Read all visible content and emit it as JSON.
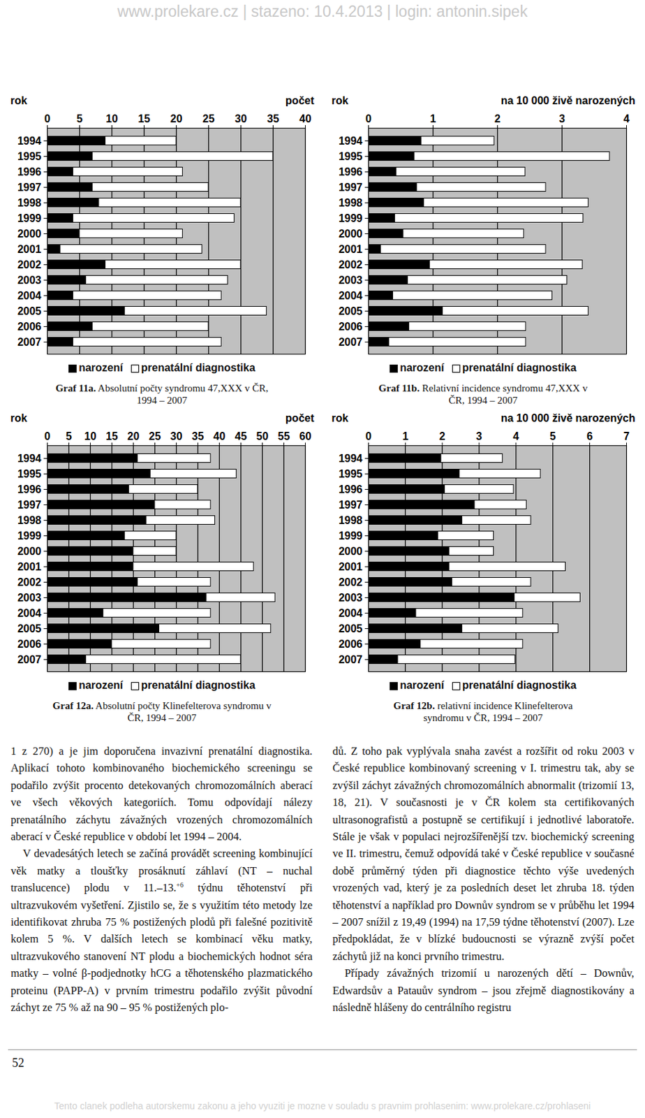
{
  "header": "www.prolekare.cz | stazeno: 10.4.2013 | login: antonin.sipek",
  "chart_data": [
    {
      "type": "bar",
      "orientation": "horizontal",
      "stacked": true,
      "grid": true,
      "legend": "bottom",
      "figure_label": "Graf 11a.",
      "title": "Absolutní počty syndromu 47,XXX v ČR, 1994 – 2007",
      "xlabel": "počet",
      "ylabel": "rok",
      "categories": [
        "1994",
        "1995",
        "1996",
        "1997",
        "1998",
        "1999",
        "2000",
        "2001",
        "2002",
        "2003",
        "2004",
        "2005",
        "2006",
        "2007"
      ],
      "series": [
        {
          "name": "narození",
          "color": "#000000",
          "values": [
            9,
            7,
            4,
            7,
            8,
            4,
            5,
            2,
            9,
            6,
            4,
            12,
            7,
            4
          ]
        },
        {
          "name": "prenatální diagnostika",
          "color": "#ffffff",
          "values": [
            11,
            28,
            17,
            18,
            22,
            25,
            16,
            22,
            21,
            22,
            23,
            22,
            18,
            23
          ]
        }
      ],
      "xlim": [
        0,
        40
      ],
      "xticks": [
        0,
        5,
        10,
        15,
        20,
        25,
        30,
        35,
        40
      ]
    },
    {
      "type": "bar",
      "orientation": "horizontal",
      "stacked": true,
      "grid": true,
      "legend": "bottom",
      "figure_label": "Graf 11b.",
      "title": "Relativní incidence syndromu 47,XXX v ČR, 1994 – 2007",
      "xlabel": "na 10 000 živě narozených",
      "ylabel": "rok",
      "categories": [
        "1994",
        "1995",
        "1996",
        "1997",
        "1998",
        "1999",
        "2000",
        "2001",
        "2002",
        "2003",
        "2004",
        "2005",
        "2006",
        "2007"
      ],
      "series": [
        {
          "name": "narození",
          "color": "#000000",
          "values": [
            0.82,
            0.71,
            0.43,
            0.75,
            0.86,
            0.41,
            0.54,
            0.19,
            0.95,
            0.61,
            0.38,
            1.15,
            0.63,
            0.32
          ]
        },
        {
          "name": "prenatální diagnostika",
          "color": "#ffffff",
          "values": [
            1.13,
            3.03,
            2,
            2,
            2.55,
            2.92,
            1.87,
            2.56,
            2.37,
            2.47,
            2.47,
            2.26,
            1.81,
            2.12
          ]
        }
      ],
      "xlim": [
        0,
        4
      ],
      "xticks": [
        0,
        1,
        2,
        3,
        4
      ]
    },
    {
      "type": "bar",
      "orientation": "horizontal",
      "stacked": true,
      "grid": true,
      "legend": "bottom",
      "figure_label": "Graf 12a.",
      "title": "Absolutní počty Klinefelterova syndromu v ČR, 1994 – 2007",
      "xlabel": "počet",
      "ylabel": "rok",
      "categories": [
        "1994",
        "1995",
        "1996",
        "1997",
        "1998",
        "1999",
        "2000",
        "2001",
        "2002",
        "2003",
        "2004",
        "2005",
        "2006",
        "2007"
      ],
      "series": [
        {
          "name": "narození",
          "color": "#000000",
          "values": [
            21,
            24,
            19,
            25,
            23,
            18,
            20,
            20,
            21,
            37,
            13,
            26,
            15,
            9
          ]
        },
        {
          "name": "prenatální diagnostika",
          "color": "#ffffff",
          "values": [
            17,
            20,
            16,
            13,
            16,
            12,
            10,
            28,
            17,
            16,
            25,
            26,
            23,
            36
          ]
        }
      ],
      "xlim": [
        0,
        60
      ],
      "xticks": [
        0,
        5,
        10,
        15,
        20,
        25,
        30,
        35,
        40,
        45,
        50,
        55,
        60
      ]
    },
    {
      "type": "bar",
      "orientation": "horizontal",
      "stacked": true,
      "grid": true,
      "legend": "bottom",
      "figure_label": "Graf 12b.",
      "title": "relativní incidence Klinefelterova syndromu v ČR, 1994 – 2007",
      "xlabel": "na 10 000 živě narozených",
      "ylabel": "rok",
      "categories": [
        "1994",
        "1995",
        "1996",
        "1997",
        "1998",
        "1999",
        "2000",
        "2001",
        "2002",
        "2003",
        "2004",
        "2005",
        "2006",
        "2007"
      ],
      "series": [
        {
          "name": "narození",
          "color": "#000000",
          "values": [
            1.97,
            2.47,
            2.07,
            2.88,
            2.54,
            1.89,
            2.19,
            2.19,
            2.27,
            3.96,
            1.29,
            2.54,
            1.41,
            0.8
          ]
        },
        {
          "name": "prenatální diagnostika",
          "color": "#ffffff",
          "values": [
            1.67,
            2.2,
            1.87,
            1.41,
            1.87,
            1.51,
            1.21,
            3.16,
            2.14,
            1.79,
            2.9,
            2.61,
            2.78,
            3.18
          ]
        }
      ],
      "xlim": [
        0,
        7
      ],
      "xticks": [
        0,
        1,
        2,
        3,
        4,
        5,
        6,
        7
      ]
    }
  ],
  "body": {
    "columns": [
      [
        {
          "runs": [
            {
              "text": "1 z 270) a je jim doporučena invazivní prenatální diagnostika. Aplikací tohoto kombinovaného biochemického screeningu se podařilo zvýšit procento detekovaných chromozomálních aberací ve všech věkových kategoriích. Tomu odpovídají nálezy prenatálního záchytu závažných vrozených chromozomálních aberací v České republice v období let 1994 – 2004."
            }
          ]
        },
        {
          "runs": [
            {
              "text": "V devadesátých letech se začíná provádět screening kombinující věk matky a tloušťky prosáknutí záhlaví (NT – nuchal translucence) plodu v 11.–13."
            },
            {
              "text": "+6",
              "sup": true
            },
            {
              "text": " týdnu těhotenství při ultrazvukovém vyšetření. Zjistilo se, že s využitím této metody lze identifikovat zhruba 75 % postižených plodů při falešné pozitivitě kolem 5 %. V dalších letech se kombinací věku matky, ultrazvukového stanovení NT plodu a biochemických hodnot séra matky – volné β-podjednotky hCG a těhotenského plazmatického proteinu (PAPP-A) v prvním trimestru podařilo zvýšit původní záchyt ze 75 % až na 90 – 95 % postižených plo-"
            }
          ]
        }
      ],
      [
        {
          "runs": [
            {
              "text": "dů. Z toho pak vyplývala snaha zavést a rozšířit od roku 2003 v České republice kombinovaný screening v I. trimestru tak, aby se zvýšil záchyt závažných chromozomálních abnormalit (trizomií 13, 18, 21). V současnosti je v ČR kolem sta certifikovaných ultrasonografistů a postupně se certifikují i jednotlivé laboratoře. Stále je však v populaci nejrozšířenější tzv. biochemický screening ve II. trimestru, čemuž odpovídá také v České republice v současné době průměrný týden při diagnostice těchto výše uvedených vrozených vad, který je za posledních deset let zhruba 18. týden těhotenství a například pro Downův syndrom se v průběhu let 1994 – 2007 snížil z 19,49 (1994) na 17,59 týdne těhotenství (2007). Lze předpokládat, že v blízké budoucnosti se výrazně zvýší počet záchytů již na konci prvního trimestru."
            }
          ]
        },
        {
          "runs": [
            {
              "text": "Případy závažných trizomií u narozených dětí – Downův, Edwardsův a Patauův syndrom – jsou zřejmě diagnostikovány a následně hlášeny do centrálního registru"
            }
          ]
        }
      ]
    ]
  },
  "page_number": "52",
  "footer": "Tento clanek podleha autorskemu zakonu a jeho vyuziti je mozne v souladu s pravnim prohlasenim: www.prolekare.cz/prohlaseni"
}
